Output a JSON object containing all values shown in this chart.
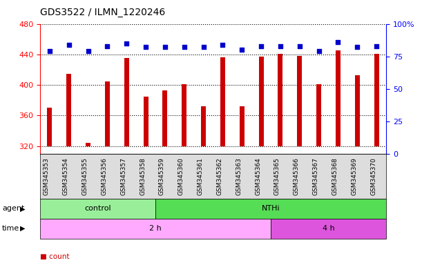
{
  "title": "GDS3522 / ILMN_1220246",
  "samples": [
    "GSM345353",
    "GSM345354",
    "GSM345355",
    "GSM345356",
    "GSM345357",
    "GSM345358",
    "GSM345359",
    "GSM345360",
    "GSM345361",
    "GSM345362",
    "GSM345363",
    "GSM345364",
    "GSM345365",
    "GSM345366",
    "GSM345367",
    "GSM345368",
    "GSM345369",
    "GSM345370"
  ],
  "counts": [
    370,
    415,
    324,
    405,
    435,
    385,
    393,
    401,
    372,
    436,
    372,
    437,
    441,
    438,
    401,
    445,
    413,
    441
  ],
  "percentile_ranks": [
    79,
    84,
    79,
    83,
    85,
    82,
    82,
    82,
    82,
    84,
    80,
    83,
    83,
    83,
    79,
    86,
    82,
    83
  ],
  "ylim_left": [
    310,
    480
  ],
  "ylim_right": [
    0,
    100
  ],
  "yticks_left": [
    320,
    360,
    400,
    440,
    480
  ],
  "yticks_right": [
    0,
    25,
    50,
    75,
    100
  ],
  "bar_color": "#cc0000",
  "dot_color": "#0000cc",
  "bar_bottom": 320,
  "agent_groups": [
    {
      "label": "control",
      "start": 0,
      "end": 6,
      "color": "#99ee99"
    },
    {
      "label": "NTHi",
      "start": 6,
      "end": 18,
      "color": "#55dd55"
    }
  ],
  "time_groups": [
    {
      "label": "2 h",
      "start": 0,
      "end": 12,
      "color": "#ffaaff"
    },
    {
      "label": "4 h",
      "start": 12,
      "end": 18,
      "color": "#dd55dd"
    }
  ],
  "legend_count_color": "#cc0000",
  "legend_pct_color": "#0000cc",
  "xtick_bg": "#dddddd"
}
